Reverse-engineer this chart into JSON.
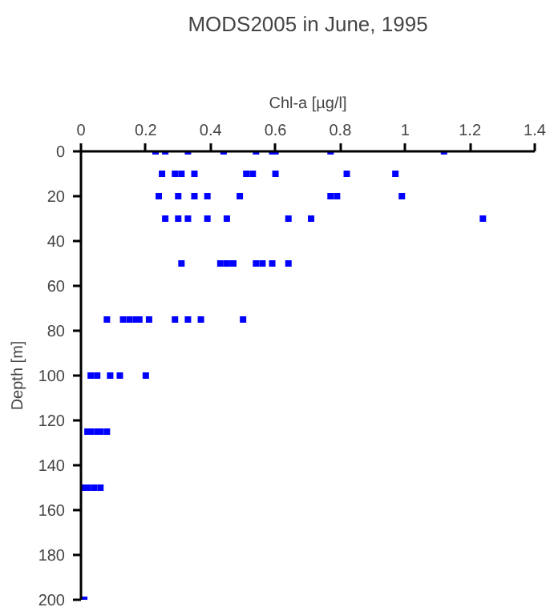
{
  "chart_data": {
    "type": "scatter",
    "title": "MODS2005 in June, 1995",
    "xlabel": "Chl-a [µg/l]",
    "ylabel": "Depth [m]",
    "x": [
      0.23,
      0.26,
      0.33,
      0.44,
      0.54,
      0.59,
      0.6,
      0.77,
      1.12,
      0.25,
      0.29,
      0.31,
      0.35,
      0.51,
      0.53,
      0.6,
      0.82,
      0.97,
      0.24,
      0.3,
      0.35,
      0.39,
      0.49,
      0.77,
      0.79,
      0.99,
      0.26,
      0.3,
      0.33,
      0.39,
      0.45,
      0.64,
      0.71,
      1.24,
      0.31,
      0.43,
      0.45,
      0.47,
      0.54,
      0.56,
      0.59,
      0.64,
      0.08,
      0.13,
      0.15,
      0.17,
      0.18,
      0.21,
      0.29,
      0.33,
      0.37,
      0.5,
      0.03,
      0.05,
      0.09,
      0.12,
      0.2,
      0.02,
      0.03,
      0.05,
      0.06,
      0.08,
      0.01,
      0.02,
      0.04,
      0.06,
      0.01
    ],
    "series": [
      {
        "color": "#0000ff",
        "values": [
          0,
          0,
          0,
          0,
          0,
          0,
          0,
          0,
          0,
          10,
          10,
          10,
          10,
          10,
          10,
          10,
          10,
          10,
          20,
          20,
          20,
          20,
          20,
          20,
          20,
          20,
          30,
          30,
          30,
          30,
          30,
          30,
          30,
          30,
          50,
          50,
          50,
          50,
          50,
          50,
          50,
          50,
          75,
          75,
          75,
          75,
          75,
          75,
          75,
          75,
          75,
          75,
          100,
          100,
          100,
          100,
          100,
          125,
          125,
          125,
          125,
          125,
          150,
          150,
          150,
          150,
          200
        ]
      }
    ],
    "marker": "square",
    "xlim": [
      0,
      1.4
    ],
    "xticks": [
      0,
      0.2,
      0.4,
      0.6,
      0.8,
      1,
      1.2,
      1.4
    ],
    "ylim": [
      200,
      0
    ],
    "yticks": [
      0,
      20,
      40,
      60,
      80,
      100,
      120,
      140,
      160,
      180,
      200
    ],
    "grid": false
  }
}
